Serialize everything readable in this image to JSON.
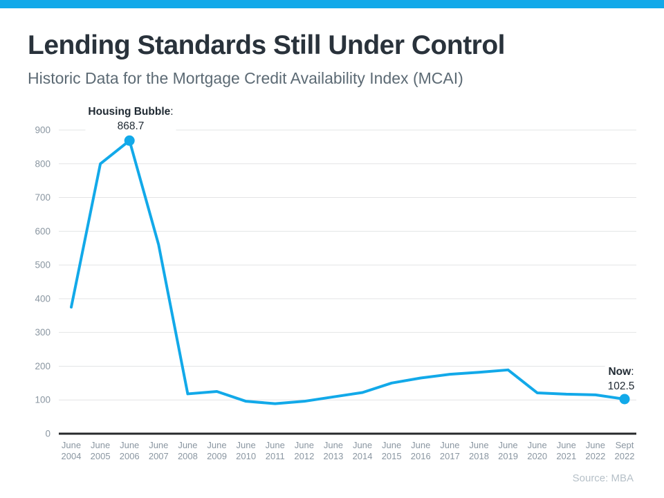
{
  "header": {
    "title": "Lending Standards Still Under Control",
    "subtitle": "Historic Data for the Mortgage Credit Availability Index (MCAI)"
  },
  "colors": {
    "accent": "#12a9e9",
    "line": "#12a9e9",
    "title_text": "#29323b",
    "subtitle_text": "#5c6a74",
    "axis_labels": "#8a96a1",
    "gridline": "#e3e4e5",
    "axis_line": "#27292b",
    "annotation_text": "#202a33",
    "source_text": "#b6c0c8"
  },
  "chart_data": {
    "type": "line",
    "title": "",
    "xlabel": "",
    "ylabel": "",
    "categories": [
      "June 2004",
      "June 2005",
      "June 2006",
      "June 2007",
      "June 2008",
      "June 2009",
      "June 2010",
      "June 2011",
      "June 2012",
      "June 2013",
      "June 2014",
      "June 2015",
      "June 2016",
      "June 2017",
      "June 2018",
      "June 2019",
      "June 2020",
      "June 2021",
      "June 2022",
      "Sept 2022"
    ],
    "series": [
      {
        "name": "Mortgage Credit Availability Index",
        "values": [
          375,
          800,
          868.7,
          560,
          118,
          125,
          96,
          89,
          96,
          109,
          122,
          150,
          165,
          176,
          182,
          189,
          121,
          117,
          115,
          102.5
        ]
      }
    ],
    "ylim": [
      0,
      900
    ],
    "ytick_step": 100,
    "yticks": [
      0,
      100,
      200,
      300,
      400,
      500,
      600,
      700,
      800,
      900
    ],
    "grid": true,
    "legend": "none",
    "marker_indices": [
      2,
      19
    ],
    "annotations": [
      {
        "index": 2,
        "label": "Housing Bubble",
        "colon": ":",
        "value": "868.7"
      },
      {
        "index": 19,
        "label": "Now",
        "colon": ":",
        "value": "102.5"
      }
    ]
  },
  "footer": {
    "source": "Source: MBA"
  }
}
